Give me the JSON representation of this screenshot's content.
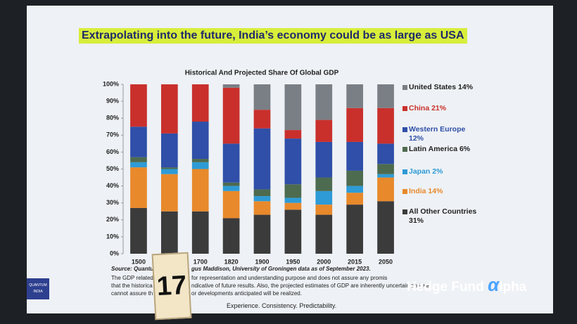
{
  "chart_data": {
    "type": "stacked_bar",
    "title": "Historical And Projected Share Of Global GDP",
    "categories": [
      "1500",
      null,
      "1700",
      "1820",
      "1900",
      "1950",
      "2000",
      "2015",
      "2050"
    ],
    "series": [
      {
        "name": "All Other Countries 31%",
        "color": "#3b3b3b",
        "values": [
          27,
          25,
          25,
          21,
          23,
          26,
          23,
          29,
          31
        ]
      },
      {
        "name": "India 14%",
        "color": "#e8892b",
        "values": [
          24,
          22,
          25,
          16,
          8,
          4,
          6,
          7,
          14
        ]
      },
      {
        "name": "Japan 2%",
        "color": "#2e9bd6",
        "values": [
          3,
          3,
          4,
          3,
          3,
          3,
          8,
          4,
          2
        ]
      },
      {
        "name": "Latin America 6%",
        "color": "#4d6b4f",
        "values": [
          3,
          1,
          2,
          2,
          4,
          8,
          8,
          9,
          6
        ]
      },
      {
        "name": "Western Europe 12%",
        "color": "#2f4fa8",
        "values": [
          18,
          20,
          22,
          23,
          36,
          27,
          21,
          17,
          12
        ]
      },
      {
        "name": "China 21%",
        "color": "#c9302c",
        "values": [
          25,
          29,
          22,
          33,
          11,
          5,
          13,
          20,
          21
        ]
      },
      {
        "name": "United States 14%",
        "color": "#7a7f85",
        "values": [
          0,
          0,
          0,
          2,
          15,
          27,
          21,
          14,
          14
        ]
      }
    ],
    "ylim": [
      0,
      100
    ],
    "yticks": [
      {
        "value": 0,
        "label": "0%"
      },
      {
        "value": 10,
        "label": "10%"
      },
      {
        "value": 20,
        "label": "20%"
      },
      {
        "value": 30,
        "label": "30%"
      },
      {
        "value": 40,
        "label": "40%"
      },
      {
        "value": 50,
        "label": "50%"
      },
      {
        "value": 60,
        "label": "60%"
      },
      {
        "value": 70,
        "label": "70%"
      },
      {
        "value": 80,
        "label": "80%"
      },
      {
        "value": 90,
        "label": "90%"
      },
      {
        "value": 100,
        "label": "100%"
      }
    ]
  },
  "slide": {
    "headline": "Extrapolating into the future, India’s economy could be as large as USA",
    "source": [
      "Source: Quantum",
      "gus Maddison, University of Groningen data as of September 2023."
    ],
    "disclaimer": [
      "The GDP related",
      "for representation and understanding purpose and does not assure any promis",
      "that the historica",
      "ndicative of future results. Also, the projected estimates of GDP are inherently uncertain and we",
      "cannot assure th",
      "or developments anticipated will be realized."
    ],
    "tagline": "Experience. Consistency. Predictability.",
    "logo": [
      "QUANTUM",
      "INDIA"
    ],
    "card": "17",
    "watermark": [
      "Hedge Fund",
      "α",
      "lpha"
    ]
  }
}
